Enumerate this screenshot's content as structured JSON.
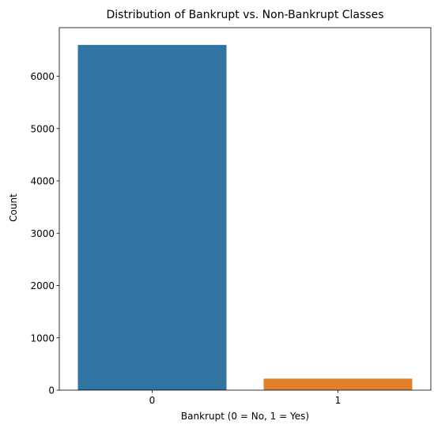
{
  "chart_data": {
    "type": "bar",
    "title": "Distribution of Bankrupt vs. Non-Bankrupt Classes",
    "xlabel": "Bankrupt (0 = No, 1 = Yes)",
    "ylabel": "Count",
    "categories": [
      "0",
      "1"
    ],
    "values": [
      6599,
      220
    ],
    "bar_colors": [
      "#3274a1",
      "#e1812c"
    ],
    "ylim": [
      0,
      6929
    ],
    "yticks": [
      0,
      1000,
      2000,
      3000,
      4000,
      5000,
      6000
    ],
    "grid": false,
    "legend": "none"
  }
}
